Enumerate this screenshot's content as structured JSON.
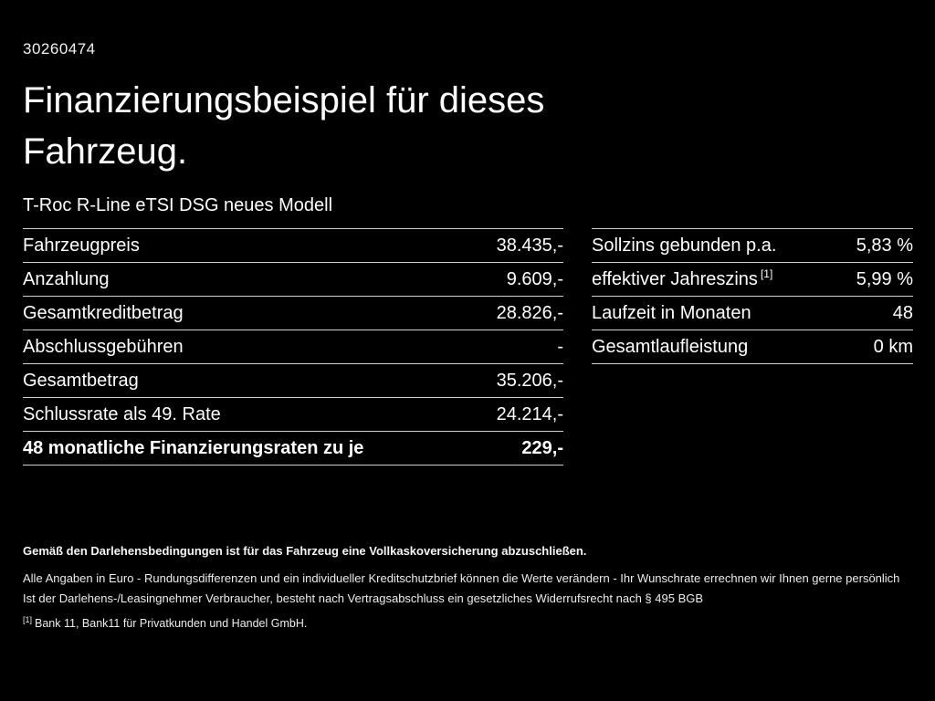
{
  "theme": {
    "background": "#000000",
    "text": "#ffffff",
    "divider": "#cfcfcf"
  },
  "header": {
    "id_number": "30260474",
    "title_line1": "Finanzierungsbeispiel für dieses",
    "title_line2": "Fahrzeug.",
    "subtitle": "T-Roc R-Line eTSI DSG neues Modell"
  },
  "left_table": {
    "rows": [
      {
        "label": "Fahrzeugpreis",
        "value": "38.435,-"
      },
      {
        "label": "Anzahlung",
        "value": "9.609,-"
      },
      {
        "label": "Gesamtkreditbetrag",
        "value": "28.826,-"
      },
      {
        "label": "Abschlussgebühren",
        "value": "-"
      },
      {
        "label": "Gesamtbetrag",
        "value": "35.206,-"
      },
      {
        "label": "Schlussrate als 49. Rate",
        "value": "24.214,-"
      },
      {
        "label": "48 monatliche Finanzierungsraten zu je",
        "value": "229,-"
      }
    ]
  },
  "right_table": {
    "rows": [
      {
        "label": "Sollzins gebunden p.a.",
        "sup": "",
        "value": "5,83 %"
      },
      {
        "label": "effektiver Jahreszins",
        "sup": "[1]",
        "value": "5,99 %"
      },
      {
        "label": "Laufzeit in Monaten",
        "sup": "",
        "value": "48"
      },
      {
        "label": "Gesamtlaufleistung",
        "sup": "",
        "value": "0 km"
      }
    ]
  },
  "footer": {
    "bold_note": "Gemäß den Darlehensbedingungen ist für das Fahrzeug eine Vollkaskoversicherung abzuschließen.",
    "note1": "Alle Angaben in Euro - Rundungsdifferenzen und ein individueller Kreditschutzbrief können die Werte verändern - Ihr Wunschrate errechnen wir Ihnen gerne persönlich",
    "note2": "Ist der Darlehens-/Leasingnehmer Verbraucher, besteht nach Vertragsabschluss ein gesetzliches Widerrufsrecht nach § 495 BGB",
    "footnote_marker": "[1]",
    "footnote": "Bank 11, Bank11 für Privatkunden und Handel GmbH."
  }
}
